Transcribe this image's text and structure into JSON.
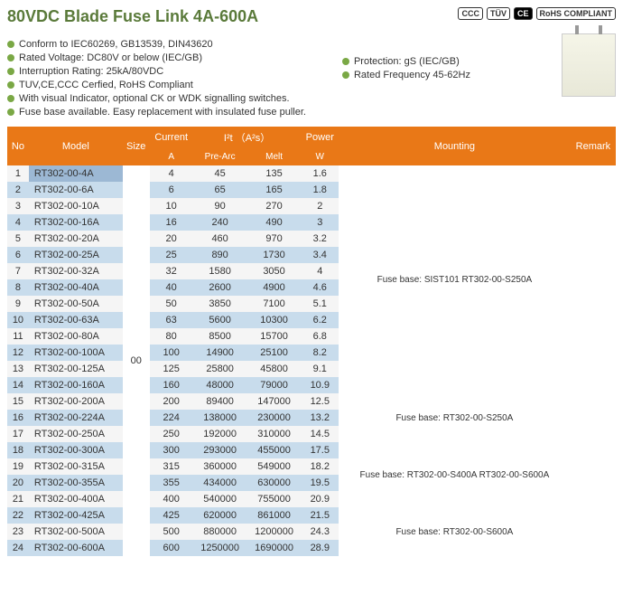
{
  "title": "80VDC Blade Fuse Link 4A-600A",
  "certifications": [
    "CCC",
    "TÜV",
    "CE",
    "RoHS COMPLIANT"
  ],
  "features_left": [
    "Conform to IEC60269, GB13539, DIN43620",
    "Rated Voltage: DC80V or below (IEC/GB)",
    "Interruption Rating: 25kA/80VDC",
    "TUV,CE,CCC Cerfied, RoHS Compliant",
    "With visual Indicator, optional CK or WDK signalling switches.",
    "Fuse base available. Easy replacement with insulated fuse puller."
  ],
  "features_right": [
    "Protection: gS (IEC/GB)",
    "Rated Frequency 45-62Hz"
  ],
  "table": {
    "headers": {
      "no": "No",
      "model": "Model",
      "size": "Size",
      "current": "Current",
      "current_unit": "A",
      "i2t": "I²t （A²s）",
      "prearc": "Pre-Arc",
      "melt": "Melt",
      "power": "Power",
      "power_unit": "W",
      "mounting": "Mounting",
      "remark": "Remark"
    },
    "size_value": "00",
    "mounting_values": [
      "Fuse base: SIST101 RT302-00-S250A",
      "Fuse base: RT302-00-S250A",
      "Fuse base: RT302-00-S400A  RT302-00-S600A",
      "Fuse base: RT302-00-S600A"
    ],
    "rows": [
      {
        "no": "1",
        "model": "RT302-00-4A",
        "current": "4",
        "prearc": "45",
        "melt": "135",
        "power": "1.6"
      },
      {
        "no": "2",
        "model": "RT302-00-6A",
        "current": "6",
        "prearc": "65",
        "melt": "165",
        "power": "1.8"
      },
      {
        "no": "3",
        "model": "RT302-00-10A",
        "current": "10",
        "prearc": "90",
        "melt": "270",
        "power": "2"
      },
      {
        "no": "4",
        "model": "RT302-00-16A",
        "current": "16",
        "prearc": "240",
        "melt": "490",
        "power": "3"
      },
      {
        "no": "5",
        "model": "RT302-00-20A",
        "current": "20",
        "prearc": "460",
        "melt": "970",
        "power": "3.2"
      },
      {
        "no": "6",
        "model": "RT302-00-25A",
        "current": "25",
        "prearc": "890",
        "melt": "1730",
        "power": "3.4"
      },
      {
        "no": "7",
        "model": "RT302-00-32A",
        "current": "32",
        "prearc": "1580",
        "melt": "3050",
        "power": "4"
      },
      {
        "no": "8",
        "model": "RT302-00-40A",
        "current": "40",
        "prearc": "2600",
        "melt": "4900",
        "power": "4.6"
      },
      {
        "no": "9",
        "model": "RT302-00-50A",
        "current": "50",
        "prearc": "3850",
        "melt": "7100",
        "power": "5.1"
      },
      {
        "no": "10",
        "model": "RT302-00-63A",
        "current": "63",
        "prearc": "5600",
        "melt": "10300",
        "power": "6.2"
      },
      {
        "no": "11",
        "model": "RT302-00-80A",
        "current": "80",
        "prearc": "8500",
        "melt": "15700",
        "power": "6.8"
      },
      {
        "no": "12",
        "model": "RT302-00-100A",
        "current": "100",
        "prearc": "14900",
        "melt": "25100",
        "power": "8.2"
      },
      {
        "no": "13",
        "model": "RT302-00-125A",
        "current": "125",
        "prearc": "25800",
        "melt": "45800",
        "power": "9.1"
      },
      {
        "no": "14",
        "model": "RT302-00-160A",
        "current": "160",
        "prearc": "48000",
        "melt": "79000",
        "power": "10.9"
      },
      {
        "no": "15",
        "model": "RT302-00-200A",
        "current": "200",
        "prearc": "89400",
        "melt": "147000",
        "power": "12.5"
      },
      {
        "no": "16",
        "model": "RT302-00-224A",
        "current": "224",
        "prearc": "138000",
        "melt": "230000",
        "power": "13.2"
      },
      {
        "no": "17",
        "model": "RT302-00-250A",
        "current": "250",
        "prearc": "192000",
        "melt": "310000",
        "power": "14.5"
      },
      {
        "no": "18",
        "model": "RT302-00-300A",
        "current": "300",
        "prearc": "293000",
        "melt": "455000",
        "power": "17.5"
      },
      {
        "no": "19",
        "model": "RT302-00-315A",
        "current": "315",
        "prearc": "360000",
        "melt": "549000",
        "power": "18.2"
      },
      {
        "no": "20",
        "model": "RT302-00-355A",
        "current": "355",
        "prearc": "434000",
        "melt": "630000",
        "power": "19.5"
      },
      {
        "no": "21",
        "model": "RT302-00-400A",
        "current": "400",
        "prearc": "540000",
        "melt": "755000",
        "power": "20.9"
      },
      {
        "no": "22",
        "model": "RT302-00-425A",
        "current": "425",
        "prearc": "620000",
        "melt": "861000",
        "power": "21.5"
      },
      {
        "no": "23",
        "model": "RT302-00-500A",
        "current": "500",
        "prearc": "880000",
        "melt": "1200000",
        "power": "24.3"
      },
      {
        "no": "24",
        "model": "RT302-00-600A",
        "current": "600",
        "prearc": "1250000",
        "melt": "1690000",
        "power": "28.9"
      }
    ]
  },
  "colors": {
    "title": "#5a7a3a",
    "bullet": "#7aa845",
    "header_bg": "#e97817",
    "even_row": "#c8dcec",
    "odd_row": "#f5f5f5"
  }
}
